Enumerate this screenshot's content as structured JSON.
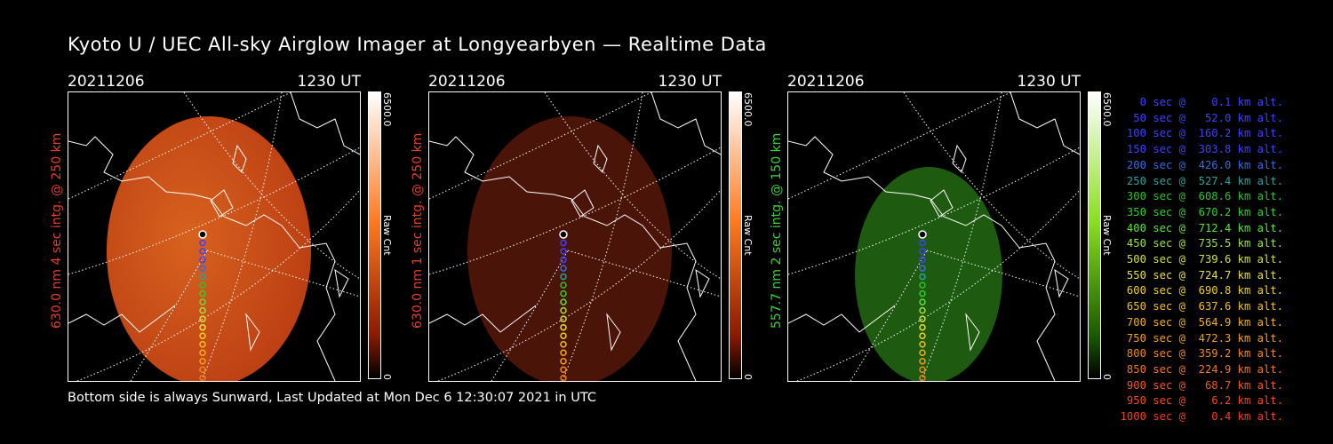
{
  "title": "Kyoto U / UEC All-sky Airglow Imager at Longyearbyen — Realtime Data",
  "footer": "Bottom side is always Sunward, Last Updated at Mon Dec  6 12:30:07 2021 in UTC",
  "panels": [
    {
      "date": "20211206",
      "time": "1230 UT",
      "ylabel": "630.0 nm 4 sec intg. @ 250 km",
      "label_color": "#e0402a",
      "cbar_max": "6500.0",
      "cbar_min": "0",
      "cbar_unit": "Raw Cnt",
      "cbar_top": "#ffffff",
      "cbar_mid": "#ff7a20",
      "cbar_low": "#8a1a00",
      "image_tint": "#b83a12",
      "image_intensity": 1.0
    },
    {
      "date": "20211206",
      "time": "1230 UT",
      "ylabel": "630.0 nm 1 sec intg. @ 250 km",
      "label_color": "#e0402a",
      "cbar_max": "6500.0",
      "cbar_min": "0",
      "cbar_unit": "Raw Cnt",
      "cbar_top": "#ffffff",
      "cbar_mid": "#ff7a20",
      "cbar_low": "#8a1a00",
      "image_tint": "#4a1408",
      "image_intensity": 0.4
    },
    {
      "date": "20211206",
      "time": "1230 UT",
      "ylabel": "557.7 nm 2 sec intg. @ 150 km",
      "label_color": "#3ed13e",
      "cbar_max": "6500.0",
      "cbar_min": "0",
      "cbar_unit": "Raw Cnt",
      "cbar_top": "#ffffff",
      "cbar_mid": "#8ae020",
      "cbar_low": "#1a5a00",
      "image_tint": "#1e5a10",
      "image_intensity": 0.6
    }
  ],
  "legend": [
    {
      "text": "0 sec @    0.1 km alt.",
      "color": "#4040ff"
    },
    {
      "text": "50 sec @   52.0 km alt.",
      "color": "#4040ff"
    },
    {
      "text": "100 sec @  160.2 km alt.",
      "color": "#4040ff"
    },
    {
      "text": "150 sec @  303.8 km alt.",
      "color": "#4040ff"
    },
    {
      "text": "200 sec @  426.0 km alt.",
      "color": "#3a6ae0"
    },
    {
      "text": "250 sec @  527.4 km alt.",
      "color": "#2aa0a0"
    },
    {
      "text": "300 sec @  608.6 km alt.",
      "color": "#30c030"
    },
    {
      "text": "350 sec @  670.2 km alt.",
      "color": "#30d030"
    },
    {
      "text": "400 sec @  712.4 km alt.",
      "color": "#60e040"
    },
    {
      "text": "450 sec @  735.5 km alt.",
      "color": "#a0e040"
    },
    {
      "text": "500 sec @  739.6 km alt.",
      "color": "#d0e040"
    },
    {
      "text": "550 sec @  724.7 km alt.",
      "color": "#e8e040"
    },
    {
      "text": "600 sec @  690.8 km alt.",
      "color": "#f0d020"
    },
    {
      "text": "650 sec @  637.6 km alt.",
      "color": "#f0c020"
    },
    {
      "text": "700 sec @  564.9 km alt.",
      "color": "#f0b020"
    },
    {
      "text": "750 sec @  472.3 km alt.",
      "color": "#f0a020"
    },
    {
      "text": "800 sec @  359.2 km alt.",
      "color": "#f08820"
    },
    {
      "text": "850 sec @  224.9 km alt.",
      "color": "#f07820"
    },
    {
      "text": "900 sec @   68.7 km alt.",
      "color": "#f05a20"
    },
    {
      "text": "950 sec @    6.2 km alt.",
      "color": "#f04a20"
    },
    {
      "text": "1000 sec @    0.4 km alt.",
      "color": "#f04020"
    }
  ]
}
